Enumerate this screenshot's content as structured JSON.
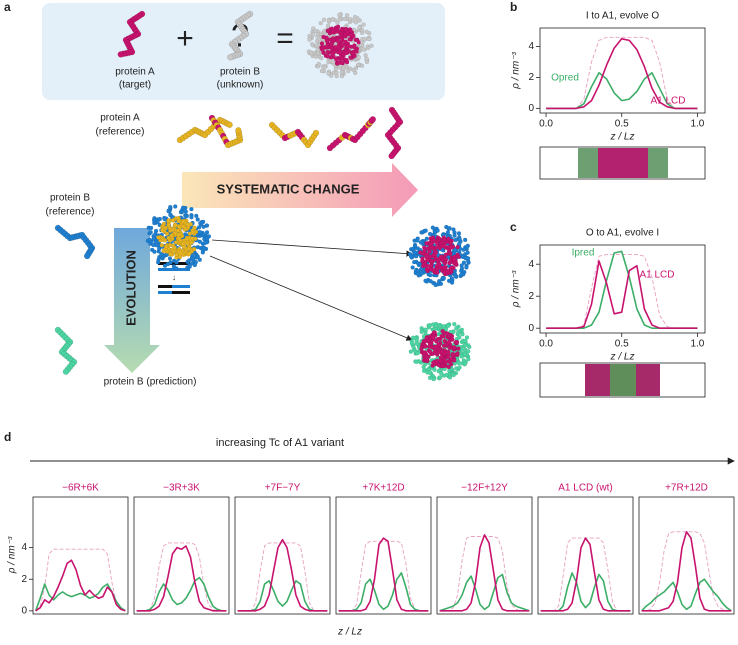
{
  "panel_labels": [
    "a",
    "b",
    "c",
    "d"
  ],
  "diagram": {
    "target_label": [
      "protein A",
      "(target)"
    ],
    "unknown_label": [
      "protein B",
      "(unknown)"
    ],
    "question": "?",
    "plus": "+",
    "equals": "=",
    "ref_a_label": [
      "protein A",
      "(reference)"
    ],
    "ref_b_label": [
      "protein B",
      "(reference)"
    ],
    "systematic": "SYSTEMATIC CHANGE",
    "evolution": "EVOLUTION",
    "prediction_label": "protein B (prediction)"
  },
  "panel_d": {
    "arrow_label": "increasing Tc of A1 variant",
    "xlabel": "z / Lz",
    "ylabel": "ρ / nm⁻³"
  },
  "chart_data": [
    {
      "type": "line",
      "title": "I to A1, evolve O",
      "xlabel": "z / Lz",
      "ylabel": "ρ / nm⁻³",
      "xlim": [
        -0.04,
        1.05
      ],
      "ylim": [
        -0.3,
        5.2
      ],
      "xticks": [
        {
          "value": 0,
          "label": "0.0"
        },
        {
          "value": 0.5,
          "label": "0.5"
        },
        {
          "value": 1,
          "label": "1.0"
        }
      ],
      "yticks": [
        0,
        2,
        4
      ],
      "x": [
        0,
        0.05,
        0.1,
        0.15,
        0.2,
        0.25,
        0.3,
        0.35,
        0.4,
        0.45,
        0.5,
        0.55,
        0.6,
        0.65,
        0.7,
        0.75,
        0.8,
        0.85,
        0.9,
        0.95,
        1
      ],
      "series": [
        {
          "color": "#e8a0c0",
          "dashed": true,
          "values": [
            0,
            0,
            0,
            0,
            0,
            0.6,
            3.0,
            4.4,
            4.6,
            4.6,
            4.6,
            4.6,
            4.6,
            4.6,
            4.4,
            3.0,
            0.6,
            0,
            0,
            0,
            0
          ]
        },
        {
          "name": "Opred",
          "color": "#3cae67",
          "values": [
            0,
            0,
            0,
            0,
            0,
            0.3,
            1.4,
            2.3,
            1.9,
            1.0,
            0.5,
            0.6,
            1.1,
            1.9,
            2.3,
            1.3,
            0.3,
            0,
            0,
            0,
            0
          ]
        },
        {
          "name": "A1 LCD",
          "color": "#c8136e",
          "values": [
            0,
            0,
            0,
            0,
            0,
            0.1,
            0.5,
            1.5,
            2.8,
            3.9,
            4.5,
            4.4,
            3.8,
            2.7,
            1.3,
            0.4,
            0.1,
            0,
            0,
            0,
            0
          ]
        }
      ]
    },
    {
      "type": "line",
      "title": "O to A1, evolve I",
      "xlabel": "z / Lz",
      "ylabel": "ρ / nm⁻³",
      "xlim": [
        -0.04,
        1.05
      ],
      "ylim": [
        -0.3,
        5.2
      ],
      "xticks": [
        {
          "value": 0,
          "label": "0.0"
        },
        {
          "value": 0.5,
          "label": "0.5"
        },
        {
          "value": 1,
          "label": "1.0"
        }
      ],
      "yticks": [
        0,
        2,
        4
      ],
      "x": [
        0,
        0.05,
        0.1,
        0.15,
        0.2,
        0.25,
        0.3,
        0.35,
        0.4,
        0.45,
        0.5,
        0.55,
        0.6,
        0.65,
        0.7,
        0.75,
        0.8,
        0.85,
        0.9,
        0.95,
        1
      ],
      "series": [
        {
          "color": "#e8a0c0",
          "dashed": true,
          "values": [
            0,
            0,
            0,
            0,
            0,
            0.2,
            2.5,
            4.5,
            4.6,
            4.6,
            4.6,
            4.6,
            4.6,
            4.5,
            3.2,
            0.8,
            0.1,
            0,
            0,
            0,
            0
          ]
        },
        {
          "name": "Ipred",
          "color": "#3cae67",
          "values": [
            0,
            0,
            0,
            0,
            0,
            0,
            0.2,
            1.0,
            3.0,
            4.7,
            4.8,
            3.2,
            1.2,
            0.2,
            0,
            0,
            0,
            0,
            0,
            0,
            0
          ]
        },
        {
          "name": "A1 LCD",
          "color": "#c8136e",
          "values": [
            0,
            0,
            0,
            0,
            0,
            0.1,
            1.5,
            4.2,
            2.8,
            0.9,
            1.0,
            3.6,
            3.9,
            1.2,
            0.2,
            0,
            0,
            0,
            0,
            0,
            0
          ]
        }
      ]
    },
    {
      "type": "line",
      "title": "−6R+6K",
      "xlim": [
        -0.03,
        1.03
      ],
      "ylim": [
        -0.2,
        7.2
      ],
      "yticks": [
        0,
        2,
        4
      ],
      "x": [
        0,
        0.05,
        0.1,
        0.15,
        0.2,
        0.25,
        0.3,
        0.35,
        0.4,
        0.45,
        0.5,
        0.55,
        0.6,
        0.65,
        0.7,
        0.75,
        0.8,
        0.85,
        0.9,
        0.95,
        1
      ],
      "series": [
        {
          "color": "#e8a0c0",
          "dashed": true,
          "values": [
            0,
            0.3,
            1.5,
            3.6,
            3.9,
            3.9,
            3.9,
            3.9,
            3.9,
            3.9,
            3.9,
            3.9,
            3.9,
            3.9,
            3.9,
            3.9,
            3.6,
            1.8,
            0.5,
            0.1,
            0
          ]
        },
        {
          "color": "#3cae67",
          "values": [
            0,
            0.8,
            1.7,
            1.0,
            0.7,
            1.0,
            1.2,
            1.0,
            0.9,
            1.0,
            1.1,
            1.0,
            0.8,
            0.9,
            1.1,
            1.5,
            1.7,
            1.2,
            0.6,
            0.2,
            0
          ]
        },
        {
          "color": "#c8136e",
          "values": [
            0,
            0.2,
            0.7,
            0.5,
            0.9,
            1.5,
            2.2,
            3.0,
            3.2,
            2.6,
            1.6,
            1.0,
            1.3,
            1.0,
            0.8,
            0.9,
            1.5,
            1.2,
            0.4,
            0.1,
            0
          ]
        }
      ]
    },
    {
      "type": "line",
      "title": "−3R+3K",
      "xlim": [
        -0.03,
        1.03
      ],
      "ylim": [
        -0.2,
        7.2
      ],
      "x": [
        0,
        0.05,
        0.1,
        0.15,
        0.2,
        0.25,
        0.3,
        0.35,
        0.4,
        0.45,
        0.5,
        0.55,
        0.6,
        0.65,
        0.7,
        0.75,
        0.8,
        0.85,
        0.9,
        0.95,
        1
      ],
      "series": [
        {
          "color": "#e8a0c0",
          "dashed": true,
          "values": [
            0,
            0,
            0,
            0.1,
            0.8,
            2.8,
            4.1,
            4.3,
            4.3,
            4.3,
            4.3,
            4.3,
            4.3,
            4.2,
            3.4,
            1.6,
            0.4,
            0.1,
            0,
            0,
            0
          ]
        },
        {
          "color": "#3cae67",
          "values": [
            0,
            0,
            0,
            0.1,
            0.4,
            1.2,
            1.7,
            1.3,
            0.7,
            0.4,
            0.5,
            0.8,
            1.3,
            1.9,
            2.1,
            1.7,
            0.9,
            0.3,
            0.1,
            0,
            0
          ]
        },
        {
          "color": "#c8136e",
          "values": [
            0,
            0,
            0,
            0,
            0.1,
            0.3,
            0.9,
            2.2,
            3.6,
            4.0,
            3.9,
            4.1,
            3.4,
            1.8,
            0.6,
            0.2,
            0.1,
            0,
            0,
            0,
            0
          ]
        }
      ]
    },
    {
      "type": "line",
      "title": "+7F−7Y",
      "xlim": [
        -0.03,
        1.03
      ],
      "ylim": [
        -0.2,
        7.2
      ],
      "x": [
        0,
        0.05,
        0.1,
        0.15,
        0.2,
        0.25,
        0.3,
        0.35,
        0.4,
        0.45,
        0.5,
        0.55,
        0.6,
        0.65,
        0.7,
        0.75,
        0.8,
        0.85,
        0.9,
        0.95,
        1
      ],
      "series": [
        {
          "color": "#e8a0c0",
          "dashed": true,
          "values": [
            0,
            0,
            0,
            0,
            0.5,
            2.5,
            4.1,
            4.3,
            4.3,
            4.3,
            4.3,
            4.3,
            4.3,
            4.3,
            4.1,
            2.5,
            0.5,
            0,
            0,
            0,
            0
          ]
        },
        {
          "color": "#3cae67",
          "values": [
            0,
            0,
            0,
            0,
            0.1,
            0.6,
            1.7,
            1.9,
            1.3,
            0.6,
            0.3,
            0.6,
            1.3,
            1.9,
            1.7,
            0.6,
            0.1,
            0,
            0,
            0,
            0
          ]
        },
        {
          "color": "#c8136e",
          "values": [
            0,
            0,
            0,
            0,
            0,
            0.1,
            0.3,
            1.0,
            2.5,
            4.0,
            4.5,
            4.0,
            2.6,
            1.0,
            0.3,
            0.1,
            0,
            0,
            0,
            0,
            0
          ]
        }
      ]
    },
    {
      "type": "line",
      "title": "+7K+12D",
      "xlim": [
        -0.03,
        1.03
      ],
      "ylim": [
        -0.2,
        7.2
      ],
      "x": [
        0,
        0.05,
        0.1,
        0.15,
        0.2,
        0.25,
        0.3,
        0.35,
        0.4,
        0.45,
        0.5,
        0.55,
        0.6,
        0.65,
        0.7,
        0.75,
        0.8,
        0.85,
        0.9,
        0.95,
        1
      ],
      "series": [
        {
          "color": "#e8a0c0",
          "dashed": true,
          "values": [
            0,
            0,
            0,
            0,
            0.4,
            2.4,
            4.2,
            4.4,
            4.4,
            4.4,
            4.4,
            4.4,
            4.4,
            4.4,
            4.3,
            3.0,
            0.8,
            0.1,
            0,
            0,
            0
          ]
        },
        {
          "color": "#3cae67",
          "values": [
            0,
            0,
            0,
            0,
            0.1,
            0.5,
            1.7,
            2.0,
            1.3,
            0.4,
            0.1,
            0.3,
            1.0,
            2.0,
            2.4,
            1.5,
            0.4,
            0.1,
            0,
            0,
            0
          ]
        },
        {
          "color": "#c8136e",
          "values": [
            0,
            0,
            0,
            0,
            0,
            0,
            0.1,
            0.6,
            2.0,
            4.2,
            4.6,
            4.4,
            2.6,
            0.7,
            0.1,
            0,
            0,
            0,
            0,
            0,
            0
          ]
        }
      ]
    },
    {
      "type": "line",
      "title": "−12F+12Y",
      "xlim": [
        -0.03,
        1.03
      ],
      "ylim": [
        -0.2,
        7.2
      ],
      "x": [
        0,
        0.05,
        0.1,
        0.15,
        0.2,
        0.25,
        0.3,
        0.35,
        0.4,
        0.45,
        0.5,
        0.55,
        0.6,
        0.65,
        0.7,
        0.75,
        0.8,
        0.85,
        0.9,
        0.95,
        1
      ],
      "series": [
        {
          "color": "#e8a0c0",
          "dashed": true,
          "values": [
            0,
            0,
            0,
            0.2,
            1.0,
            3.2,
            4.6,
            4.7,
            4.7,
            4.7,
            4.7,
            4.7,
            4.7,
            4.6,
            3.8,
            1.6,
            0.4,
            0.1,
            0,
            0,
            0
          ]
        },
        {
          "color": "#3cae67",
          "values": [
            0,
            0.1,
            0.2,
            0.3,
            0.5,
            1.0,
            1.8,
            2.2,
            1.4,
            0.4,
            0.1,
            0.3,
            1.2,
            2.1,
            2.3,
            1.2,
            0.5,
            0.3,
            0.2,
            0.1,
            0
          ]
        },
        {
          "color": "#c8136e",
          "values": [
            0,
            0,
            0,
            0,
            0,
            0,
            0.1,
            0.5,
            1.8,
            4.0,
            4.8,
            4.3,
            2.5,
            0.7,
            0.1,
            0,
            0,
            0,
            0,
            0,
            0
          ]
        }
      ]
    },
    {
      "type": "line",
      "title": "A1 LCD (wt)",
      "xlim": [
        -0.03,
        1.03
      ],
      "ylim": [
        -0.2,
        7.2
      ],
      "x": [
        0,
        0.05,
        0.1,
        0.15,
        0.2,
        0.25,
        0.3,
        0.35,
        0.4,
        0.45,
        0.5,
        0.55,
        0.6,
        0.65,
        0.7,
        0.75,
        0.8,
        0.85,
        0.9,
        0.95,
        1
      ],
      "series": [
        {
          "color": "#e8a0c0",
          "dashed": true,
          "values": [
            0,
            0,
            0,
            0,
            0.3,
            2.2,
            4.3,
            4.6,
            4.6,
            4.6,
            4.6,
            4.6,
            4.6,
            4.6,
            4.3,
            2.6,
            0.6,
            0,
            0,
            0,
            0
          ]
        },
        {
          "color": "#3cae67",
          "values": [
            0,
            0,
            0,
            0,
            0,
            0.3,
            1.5,
            2.4,
            1.8,
            0.6,
            0.2,
            0.5,
            1.5,
            2.3,
            1.9,
            0.6,
            0.1,
            0,
            0,
            0,
            0
          ]
        },
        {
          "color": "#c8136e",
          "values": [
            0,
            0,
            0,
            0,
            0,
            0,
            0.1,
            0.5,
            1.9,
            4.0,
            4.6,
            4.2,
            2.4,
            0.7,
            0.1,
            0,
            0,
            0,
            0,
            0,
            0
          ]
        }
      ]
    },
    {
      "type": "line",
      "title": "+7R+12D",
      "xlim": [
        -0.03,
        1.03
      ],
      "ylim": [
        -0.2,
        7.2
      ],
      "x": [
        0,
        0.05,
        0.1,
        0.15,
        0.2,
        0.25,
        0.3,
        0.35,
        0.4,
        0.45,
        0.5,
        0.55,
        0.6,
        0.65,
        0.7,
        0.75,
        0.8,
        0.85,
        0.9,
        0.95,
        1
      ],
      "series": [
        {
          "color": "#e8a0c0",
          "dashed": true,
          "values": [
            0,
            0,
            0.1,
            0.5,
            1.8,
            3.8,
            4.9,
            5.0,
            5.0,
            5.0,
            5.0,
            5.0,
            5.0,
            4.9,
            4.3,
            2.5,
            0.9,
            0.3,
            0.1,
            0,
            0
          ]
        },
        {
          "color": "#3cae67",
          "values": [
            0,
            0.3,
            0.5,
            0.8,
            1.0,
            1.2,
            1.5,
            1.8,
            1.2,
            0.4,
            0.1,
            0.3,
            1.1,
            1.8,
            2.0,
            1.6,
            1.2,
            0.9,
            0.5,
            0.2,
            0
          ]
        },
        {
          "color": "#c8136e",
          "values": [
            0,
            0,
            0,
            0,
            0,
            0.1,
            0.2,
            0.6,
            1.8,
            4.0,
            5.0,
            4.6,
            2.8,
            0.8,
            0.1,
            0,
            0,
            0,
            0,
            0,
            0
          ]
        }
      ]
    }
  ]
}
